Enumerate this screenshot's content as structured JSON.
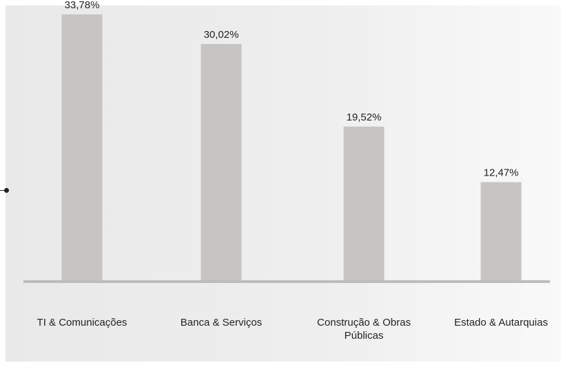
{
  "chart_data": {
    "type": "bar",
    "categories": [
      [
        "TI & Comunicações"
      ],
      [
        "Banca & Serviços"
      ],
      [
        "Construção & Obras",
        "Públicas"
      ],
      [
        "Estado & Autarquias"
      ]
    ],
    "values": [
      33.78,
      30.02,
      19.52,
      12.47
    ],
    "value_labels": [
      "33,78%",
      "30,02%",
      "19,52%",
      "12,47%"
    ],
    "ylim": [
      0,
      35
    ],
    "grid": false,
    "bar_color": "#c6c5c4",
    "baseline_color": "#bcbcbc",
    "panel_color": "#ececec"
  }
}
